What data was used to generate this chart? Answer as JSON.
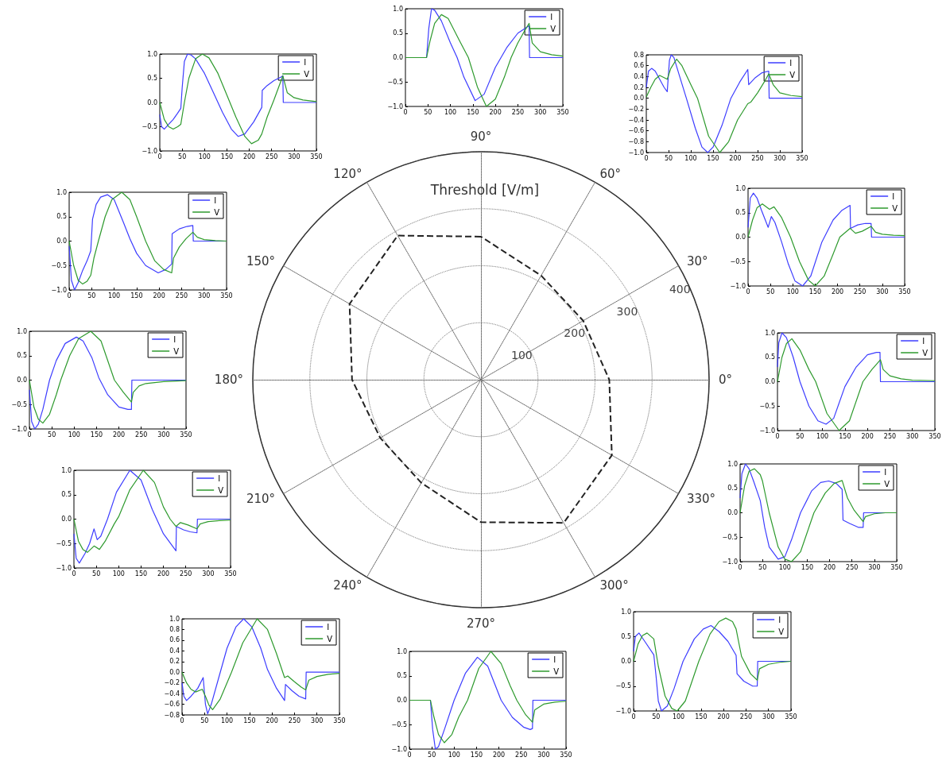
{
  "chart_data": [
    {
      "type": "line",
      "xlim": [
        0,
        350
      ],
      "xticks": [
        0,
        50,
        100,
        150,
        200,
        250,
        300,
        350
      ],
      "ylim": [
        -1,
        1
      ],
      "yticks": [
        {
          "value": -1,
          "label": "−1.0"
        },
        {
          "value": -0.5,
          "label": "−0.5"
        },
        {
          "value": 0,
          "label": "0.0"
        },
        {
          "value": 0.5,
          "label": "0.5"
        },
        {
          "value": 1,
          "label": "1.0"
        }
      ],
      "legend": "top right",
      "series": [
        {
          "name": "I",
          "color": "#3d3dff",
          "x": [
            0,
            47,
            52,
            58,
            65,
            80,
            100,
            115,
            130,
            155,
            175,
            200,
            225,
            250,
            270,
            275,
            276,
            350
          ],
          "values": [
            0,
            0,
            0.6,
            1.0,
            0.97,
            0.75,
            0.3,
            0,
            -0.4,
            -0.88,
            -0.75,
            -0.2,
            0.2,
            0.5,
            0.62,
            0.65,
            0,
            0
          ]
        },
        {
          "name": "V",
          "color": "#2e9a2e",
          "x": [
            0,
            47,
            55,
            65,
            80,
            95,
            120,
            140,
            160,
            180,
            200,
            220,
            235,
            250,
            265,
            275,
            282,
            300,
            325,
            350
          ],
          "values": [
            0,
            0,
            0.35,
            0.7,
            0.88,
            0.8,
            0.35,
            0,
            -0.6,
            -1.0,
            -0.85,
            -0.4,
            0,
            0.3,
            0.55,
            0.7,
            0.3,
            0.12,
            0.06,
            0.03
          ]
        }
      ]
    },
    {
      "type": "line",
      "xlim": [
        0,
        350
      ],
      "xticks": [
        0,
        50,
        100,
        150,
        200,
        250,
        300,
        350
      ],
      "ylim": [
        -1,
        1
      ],
      "yticks": [
        {
          "value": -1,
          "label": "−1.0"
        },
        {
          "value": -0.5,
          "label": "−0.5"
        },
        {
          "value": 0,
          "label": "0.0"
        },
        {
          "value": 0.5,
          "label": "0.5"
        },
        {
          "value": 1,
          "label": "1.0"
        }
      ],
      "legend": "top right",
      "series": [
        {
          "name": "I",
          "color": "#3d3dff",
          "x": [
            0,
            4,
            10,
            20,
            30,
            40,
            47,
            50,
            55,
            62,
            70,
            80,
            100,
            120,
            140,
            160,
            175,
            190,
            210,
            228,
            229,
            240,
            255,
            270,
            275,
            276,
            350
          ],
          "values": [
            -0.25,
            -0.5,
            -0.55,
            -0.45,
            -0.35,
            -0.22,
            -0.12,
            0.3,
            0.85,
            1.0,
            0.98,
            0.9,
            0.6,
            0.2,
            -0.2,
            -0.55,
            -0.7,
            -0.65,
            -0.4,
            -0.1,
            0.25,
            0.35,
            0.45,
            0.52,
            0.55,
            0,
            0
          ]
        },
        {
          "name": "V",
          "color": "#2e9a2e",
          "x": [
            0,
            10,
            20,
            30,
            40,
            47,
            55,
            65,
            80,
            95,
            110,
            130,
            150,
            170,
            190,
            205,
            220,
            228,
            240,
            255,
            265,
            275,
            285,
            300,
            320,
            350
          ],
          "values": [
            0,
            -0.35,
            -0.5,
            -0.55,
            -0.5,
            -0.45,
            0,
            0.5,
            0.9,
            1.0,
            0.92,
            0.6,
            0.15,
            -0.3,
            -0.7,
            -0.85,
            -0.78,
            -0.65,
            -0.3,
            0.05,
            0.3,
            0.55,
            0.2,
            0.1,
            0.05,
            0.02
          ]
        }
      ]
    },
    {
      "type": "line",
      "xlim": [
        0,
        350
      ],
      "xticks": [
        0,
        50,
        100,
        150,
        200,
        250,
        300,
        350
      ],
      "ylim": [
        -1,
        0.8
      ],
      "yticks": [
        {
          "value": -1,
          "label": "−1.0"
        },
        {
          "value": -0.8,
          "label": "−0.8"
        },
        {
          "value": -0.6,
          "label": "−0.6"
        },
        {
          "value": -0.4,
          "label": "−0.4"
        },
        {
          "value": -0.2,
          "label": "−0.2"
        },
        {
          "value": 0,
          "label": "0.0"
        },
        {
          "value": 0.2,
          "label": "0.2"
        },
        {
          "value": 0.4,
          "label": "0.4"
        },
        {
          "value": 0.6,
          "label": "0.6"
        },
        {
          "value": 0.8,
          "label": "0.8"
        }
      ],
      "legend": "top right",
      "series": [
        {
          "name": "I",
          "color": "#3d3dff",
          "x": [
            0,
            5,
            12,
            20,
            30,
            40,
            47,
            52,
            56,
            62,
            75,
            90,
            110,
            125,
            138,
            150,
            170,
            190,
            210,
            228,
            230,
            245,
            260,
            275,
            276,
            350
          ],
          "values": [
            0.2,
            0.5,
            0.55,
            0.5,
            0.35,
            0.2,
            0.12,
            0.7,
            0.8,
            0.75,
            0.4,
            0,
            -0.55,
            -0.9,
            -1.0,
            -0.9,
            -0.5,
            0,
            0.3,
            0.53,
            0.25,
            0.38,
            0.47,
            0.5,
            0,
            0
          ]
        },
        {
          "name": "V",
          "color": "#2e9a2e",
          "x": [
            0,
            10,
            20,
            30,
            40,
            47,
            55,
            68,
            80,
            100,
            115,
            140,
            165,
            185,
            205,
            228,
            235,
            250,
            265,
            275,
            285,
            300,
            325,
            350
          ],
          "values": [
            0.02,
            0.2,
            0.35,
            0.42,
            0.38,
            0.35,
            0.55,
            0.72,
            0.6,
            0.25,
            0,
            -0.7,
            -1.0,
            -0.8,
            -0.4,
            -0.1,
            -0.07,
            0.1,
            0.3,
            0.45,
            0.25,
            0.1,
            0.05,
            0.03
          ]
        }
      ]
    },
    {
      "type": "radar",
      "title": "Threshold [V/m]",
      "categories": [
        "90°",
        "60°",
        "30°",
        "0°",
        "330°",
        "300°",
        "270°",
        "240°",
        "210°",
        "180°",
        "150°",
        "120°"
      ],
      "ylim": [
        0,
        400
      ],
      "yticks": [
        100,
        200,
        300,
        400
      ],
      "grid": true,
      "line_style": "dashed",
      "series": [
        {
          "color": "#222222",
          "values": [
            251,
            211,
            207,
            225,
            265,
            290,
            250,
            209,
            204,
            226,
            266,
            292
          ]
        }
      ]
    },
    {
      "type": "line",
      "xlim": [
        0,
        350
      ],
      "xticks": [
        0,
        50,
        100,
        150,
        200,
        250,
        300,
        350
      ],
      "ylim": [
        -1,
        1
      ],
      "yticks": [
        {
          "value": -1,
          "label": "−1.0"
        },
        {
          "value": -0.5,
          "label": "−0.5"
        },
        {
          "value": 0,
          "label": "0.0"
        },
        {
          "value": 0.5,
          "label": "0.5"
        },
        {
          "value": 1,
          "label": "1.0"
        }
      ],
      "legend": "top right",
      "series": [
        {
          "name": "I",
          "color": "#3d3dff",
          "x": [
            0,
            5,
            12,
            20,
            30,
            40,
            48,
            52,
            60,
            70,
            85,
            100,
            120,
            135,
            150,
            170,
            198,
            215,
            228,
            229,
            245,
            262,
            275,
            276,
            350
          ],
          "values": [
            -0.1,
            -0.8,
            -1.0,
            -0.85,
            -0.6,
            -0.4,
            -0.2,
            0.45,
            0.75,
            0.9,
            0.95,
            0.85,
            0.4,
            0.05,
            -0.25,
            -0.5,
            -0.65,
            -0.58,
            -0.47,
            0.15,
            0.25,
            0.3,
            0.32,
            0,
            0
          ]
        },
        {
          "name": "V",
          "color": "#2e9a2e",
          "x": [
            0,
            10,
            20,
            30,
            40,
            48,
            55,
            65,
            80,
            95,
            117,
            135,
            150,
            170,
            190,
            210,
            228,
            232,
            245,
            260,
            275,
            285,
            300,
            325,
            350
          ],
          "values": [
            0,
            -0.5,
            -0.8,
            -0.88,
            -0.82,
            -0.7,
            -0.35,
            0,
            0.5,
            0.85,
            1.0,
            0.85,
            0.5,
            0,
            -0.4,
            -0.58,
            -0.65,
            -0.35,
            -0.12,
            0.05,
            0.18,
            0.08,
            0.03,
            0.01,
            0
          ]
        }
      ]
    },
    {
      "type": "line",
      "xlim": [
        0,
        350
      ],
      "xticks": [
        0,
        50,
        100,
        150,
        200,
        250,
        300,
        350
      ],
      "ylim": [
        -1,
        1
      ],
      "yticks": [
        {
          "value": -1,
          "label": "−1.0"
        },
        {
          "value": -0.5,
          "label": "−0.5"
        },
        {
          "value": 0,
          "label": "0.0"
        },
        {
          "value": 0.5,
          "label": "0.5"
        },
        {
          "value": 1,
          "label": "1.0"
        }
      ],
      "legend": "top right",
      "series": [
        {
          "name": "I",
          "color": "#3d3dff",
          "x": [
            0,
            5,
            12,
            20,
            30,
            45,
            52,
            60,
            75,
            90,
            105,
            122,
            140,
            165,
            190,
            210,
            228,
            229,
            245,
            262,
            275,
            276,
            350
          ],
          "values": [
            0.2,
            0.8,
            0.9,
            0.8,
            0.55,
            0.2,
            0.42,
            0.3,
            -0.1,
            -0.55,
            -0.9,
            -1.0,
            -0.8,
            -0.1,
            0.35,
            0.55,
            0.65,
            0.18,
            0.25,
            0.28,
            0.28,
            0,
            0
          ]
        },
        {
          "name": "V",
          "color": "#2e9a2e",
          "x": [
            0,
            10,
            20,
            32,
            48,
            58,
            75,
            95,
            115,
            135,
            150,
            170,
            190,
            205,
            228,
            240,
            255,
            275,
            285,
            300,
            325,
            350
          ],
          "values": [
            0,
            0.35,
            0.6,
            0.68,
            0.57,
            0.62,
            0.4,
            0,
            -0.5,
            -0.88,
            -1.0,
            -0.8,
            -0.35,
            0,
            0.18,
            0.08,
            0.12,
            0.22,
            0.1,
            0.06,
            0.04,
            0.03
          ]
        }
      ]
    },
    {
      "type": "line",
      "xlim": [
        0,
        350
      ],
      "xticks": [
        0,
        50,
        100,
        150,
        200,
        250,
        300,
        350
      ],
      "ylim": [
        -1,
        1
      ],
      "yticks": [
        {
          "value": -1,
          "label": "−1.0"
        },
        {
          "value": -0.5,
          "label": "−0.5"
        },
        {
          "value": 0,
          "label": "0.0"
        },
        {
          "value": 0.5,
          "label": "0.5"
        },
        {
          "value": 1,
          "label": "1.0"
        }
      ],
      "legend": "top right",
      "series": [
        {
          "name": "I",
          "color": "#3d3dff",
          "x": [
            0,
            5,
            12,
            20,
            30,
            45,
            60,
            80,
            105,
            120,
            140,
            155,
            175,
            200,
            220,
            228,
            229,
            350
          ],
          "values": [
            -0.2,
            -0.85,
            -1.0,
            -0.9,
            -0.6,
            0,
            0.4,
            0.75,
            0.88,
            0.8,
            0.45,
            0.05,
            -0.3,
            -0.55,
            -0.6,
            -0.6,
            0,
            0
          ]
        },
        {
          "name": "V",
          "color": "#2e9a2e",
          "x": [
            0,
            10,
            20,
            30,
            45,
            60,
            70,
            90,
            110,
            137,
            160,
            190,
            210,
            228,
            232,
            245,
            260,
            300,
            350
          ],
          "values": [
            0,
            -0.55,
            -0.8,
            -0.88,
            -0.7,
            -0.3,
            0,
            0.5,
            0.85,
            1.0,
            0.8,
            0,
            -0.25,
            -0.45,
            -0.25,
            -0.12,
            -0.07,
            -0.03,
            -0.01
          ]
        }
      ]
    },
    {
      "type": "line",
      "xlim": [
        0,
        350
      ],
      "xticks": [
        0,
        50,
        100,
        150,
        200,
        250,
        300,
        350
      ],
      "ylim": [
        -1,
        1
      ],
      "yticks": [
        {
          "value": -1,
          "label": "−1.0"
        },
        {
          "value": -0.5,
          "label": "−0.5"
        },
        {
          "value": 0,
          "label": "0.0"
        },
        {
          "value": 0.5,
          "label": "0.5"
        },
        {
          "value": 1,
          "label": "1.0"
        }
      ],
      "legend": "top right",
      "series": [
        {
          "name": "I",
          "color": "#3d3dff",
          "x": [
            0,
            3,
            10,
            20,
            35,
            50,
            70,
            90,
            108,
            125,
            150,
            175,
            200,
            220,
            228,
            229,
            350
          ],
          "values": [
            0.3,
            0.8,
            1.0,
            0.9,
            0.5,
            0,
            -0.5,
            -0.8,
            -0.87,
            -0.75,
            -0.1,
            0.3,
            0.55,
            0.6,
            0.6,
            0,
            0
          ]
        },
        {
          "name": "V",
          "color": "#2e9a2e",
          "x": [
            0,
            10,
            20,
            32,
            50,
            70,
            85,
            110,
            137,
            160,
            190,
            210,
            229,
            235,
            250,
            275,
            300,
            350
          ],
          "values": [
            0,
            0.5,
            0.78,
            0.88,
            0.65,
            0.25,
            0,
            -0.65,
            -1.0,
            -0.8,
            0,
            0.25,
            0.45,
            0.25,
            0.12,
            0.06,
            0.03,
            0.02
          ]
        }
      ]
    },
    {
      "type": "line",
      "xlim": [
        0,
        350
      ],
      "xticks": [
        0,
        50,
        100,
        150,
        200,
        250,
        300,
        350
      ],
      "ylim": [
        -1,
        1
      ],
      "yticks": [
        {
          "value": -1,
          "label": "−1.0"
        },
        {
          "value": -0.5,
          "label": "−0.5"
        },
        {
          "value": 0,
          "label": "0.0"
        },
        {
          "value": 0.5,
          "label": "0.5"
        },
        {
          "value": 1,
          "label": "1.0"
        }
      ],
      "legend": "top right",
      "series": [
        {
          "name": "I",
          "color": "#3d3dff",
          "x": [
            0,
            5,
            12,
            25,
            35,
            45,
            52,
            60,
            75,
            95,
            125,
            150,
            175,
            200,
            228,
            229,
            245,
            260,
            275,
            276,
            350
          ],
          "values": [
            -0.3,
            -0.8,
            -0.9,
            -0.7,
            -0.5,
            -0.2,
            -0.42,
            -0.35,
            0,
            0.55,
            1.0,
            0.8,
            0.2,
            -0.3,
            -0.65,
            -0.15,
            -0.22,
            -0.26,
            -0.28,
            0,
            0
          ]
        },
        {
          "name": "V",
          "color": "#2e9a2e",
          "x": [
            0,
            10,
            20,
            30,
            45,
            57,
            70,
            90,
            100,
            125,
            155,
            180,
            200,
            215,
            228,
            238,
            255,
            275,
            282,
            300,
            325,
            350
          ],
          "values": [
            0,
            -0.45,
            -0.62,
            -0.68,
            -0.55,
            -0.62,
            -0.45,
            -0.1,
            0.05,
            0.6,
            1.0,
            0.75,
            0.25,
            0,
            -0.15,
            -0.07,
            -0.12,
            -0.2,
            -0.1,
            -0.05,
            -0.03,
            -0.02
          ]
        }
      ]
    },
    {
      "type": "line",
      "xlim": [
        0,
        350
      ],
      "xticks": [
        0,
        50,
        100,
        150,
        200,
        250,
        300,
        350
      ],
      "ylim": [
        -1,
        1
      ],
      "yticks": [
        {
          "value": -1,
          "label": "−1.0"
        },
        {
          "value": -0.5,
          "label": "−0.5"
        },
        {
          "value": 0,
          "label": "0.0"
        },
        {
          "value": 0.5,
          "label": "0.5"
        },
        {
          "value": 1,
          "label": "1.0"
        }
      ],
      "legend": "top right",
      "series": [
        {
          "name": "I",
          "color": "#3d3dff",
          "x": [
            0,
            4,
            12,
            20,
            30,
            45,
            55,
            65,
            85,
            100,
            115,
            135,
            160,
            180,
            198,
            215,
            228,
            230,
            245,
            265,
            275,
            276,
            350
          ],
          "values": [
            0.3,
            0.8,
            1.0,
            0.9,
            0.65,
            0.25,
            -0.3,
            -0.7,
            -0.95,
            -0.9,
            -0.55,
            0,
            0.45,
            0.62,
            0.65,
            0.6,
            0.48,
            -0.15,
            -0.22,
            -0.3,
            -0.3,
            0,
            0
          ]
        },
        {
          "name": "V",
          "color": "#2e9a2e",
          "x": [
            0,
            10,
            20,
            32,
            45,
            50,
            65,
            85,
            100,
            115,
            135,
            165,
            190,
            210,
            228,
            240,
            255,
            275,
            280,
            300,
            325,
            350
          ],
          "values": [
            0,
            0.55,
            0.85,
            0.9,
            0.78,
            0.65,
            0,
            -0.7,
            -0.95,
            -1.0,
            -0.8,
            0,
            0.4,
            0.6,
            0.66,
            0.3,
            0.05,
            -0.18,
            -0.08,
            -0.02,
            0,
            0
          ]
        }
      ]
    },
    {
      "type": "line",
      "xlim": [
        0,
        350
      ],
      "xticks": [
        0,
        50,
        100,
        150,
        200,
        250,
        300,
        350
      ],
      "ylim": [
        -0.8,
        1
      ],
      "yticks": [
        {
          "value": -0.8,
          "label": "−0.8"
        },
        {
          "value": -0.6,
          "label": "−0.6"
        },
        {
          "value": -0.4,
          "label": "−0.4"
        },
        {
          "value": -0.2,
          "label": "−0.2"
        },
        {
          "value": 0,
          "label": "0.0"
        },
        {
          "value": 0.2,
          "label": "0.2"
        },
        {
          "value": 0.4,
          "label": "0.4"
        },
        {
          "value": 0.6,
          "label": "0.6"
        },
        {
          "value": 0.8,
          "label": "0.8"
        },
        {
          "value": 1,
          "label": "1.0"
        }
      ],
      "legend": "top right",
      "series": [
        {
          "name": "I",
          "color": "#3d3dff",
          "x": [
            0,
            4,
            10,
            20,
            35,
            47,
            52,
            57,
            65,
            85,
            100,
            120,
            137,
            155,
            175,
            190,
            210,
            228,
            230,
            245,
            260,
            275,
            276,
            350
          ],
          "values": [
            -0.2,
            -0.45,
            -0.53,
            -0.45,
            -0.3,
            -0.1,
            -0.6,
            -0.78,
            -0.6,
            0,
            0.45,
            0.85,
            1.0,
            0.85,
            0.45,
            0.05,
            -0.3,
            -0.53,
            -0.23,
            -0.35,
            -0.45,
            -0.5,
            0,
            0
          ]
        },
        {
          "name": "V",
          "color": "#2e9a2e",
          "x": [
            0,
            10,
            20,
            30,
            45,
            52,
            60,
            68,
            85,
            110,
            135,
            167,
            190,
            210,
            228,
            235,
            250,
            265,
            275,
            282,
            300,
            325,
            350
          ],
          "values": [
            0,
            -0.2,
            -0.32,
            -0.37,
            -0.32,
            -0.45,
            -0.62,
            -0.7,
            -0.5,
            0,
            0.55,
            1.0,
            0.8,
            0.35,
            -0.1,
            -0.07,
            -0.18,
            -0.28,
            -0.33,
            -0.15,
            -0.08,
            -0.04,
            -0.02
          ]
        }
      ]
    },
    {
      "type": "line",
      "xlim": [
        0,
        350
      ],
      "xticks": [
        0,
        50,
        100,
        150,
        200,
        250,
        300,
        350
      ],
      "ylim": [
        -1,
        1
      ],
      "yticks": [
        {
          "value": -1,
          "label": "−1.0"
        },
        {
          "value": -0.5,
          "label": "−0.5"
        },
        {
          "value": 0,
          "label": "0.0"
        },
        {
          "value": 0.5,
          "label": "0.5"
        },
        {
          "value": 1,
          "label": "1.0"
        }
      ],
      "legend": "top right",
      "series": [
        {
          "name": "I",
          "color": "#3d3dff",
          "x": [
            0,
            47,
            52,
            58,
            65,
            80,
            100,
            125,
            152,
            175,
            205,
            230,
            255,
            270,
            275,
            276,
            350
          ],
          "values": [
            0,
            0,
            -0.6,
            -1.0,
            -0.95,
            -0.55,
            0,
            0.55,
            0.88,
            0.7,
            0,
            -0.35,
            -0.55,
            -0.6,
            -0.58,
            0,
            0
          ]
        },
        {
          "name": "V",
          "color": "#2e9a2e",
          "x": [
            0,
            47,
            55,
            65,
            78,
            95,
            110,
            130,
            155,
            182,
            205,
            225,
            240,
            260,
            275,
            280,
            300,
            325,
            350
          ],
          "values": [
            0,
            0,
            -0.35,
            -0.7,
            -0.87,
            -0.7,
            -0.35,
            0,
            0.65,
            1.0,
            0.75,
            0.3,
            0,
            -0.3,
            -0.45,
            -0.2,
            -0.08,
            -0.04,
            -0.02
          ]
        }
      ]
    },
    {
      "type": "line",
      "xlim": [
        0,
        350
      ],
      "xticks": [
        0,
        50,
        100,
        150,
        200,
        250,
        300,
        350
      ],
      "ylim": [
        -1,
        1
      ],
      "yticks": [
        {
          "value": -1,
          "label": "−1.0"
        },
        {
          "value": -0.5,
          "label": "−0.5"
        },
        {
          "value": 0,
          "label": "0.0"
        },
        {
          "value": 0.5,
          "label": "0.5"
        },
        {
          "value": 1,
          "label": "1.0"
        }
      ],
      "legend": "top right",
      "series": [
        {
          "name": "I",
          "color": "#3d3dff",
          "x": [
            0,
            4,
            12,
            25,
            45,
            50,
            55,
            62,
            75,
            90,
            110,
            135,
            155,
            172,
            190,
            210,
            228,
            230,
            245,
            265,
            275,
            276,
            350
          ],
          "values": [
            0.2,
            0.5,
            0.57,
            0.4,
            0.13,
            -0.3,
            -0.8,
            -1.0,
            -0.9,
            -0.55,
            0,
            0.45,
            0.65,
            0.72,
            0.6,
            0.4,
            0.12,
            -0.25,
            -0.4,
            -0.5,
            -0.5,
            0,
            0
          ]
        },
        {
          "name": "V",
          "color": "#2e9a2e",
          "x": [
            0,
            10,
            20,
            30,
            45,
            55,
            70,
            85,
            97,
            115,
            145,
            170,
            190,
            205,
            220,
            228,
            240,
            260,
            275,
            280,
            300,
            325,
            350
          ],
          "values": [
            0,
            0.35,
            0.52,
            0.57,
            0.45,
            -0.1,
            -0.7,
            -0.95,
            -1.0,
            -0.8,
            0,
            0.55,
            0.8,
            0.87,
            0.8,
            0.65,
            0.1,
            -0.25,
            -0.38,
            -0.15,
            -0.06,
            -0.02,
            0
          ]
        }
      ]
    }
  ]
}
